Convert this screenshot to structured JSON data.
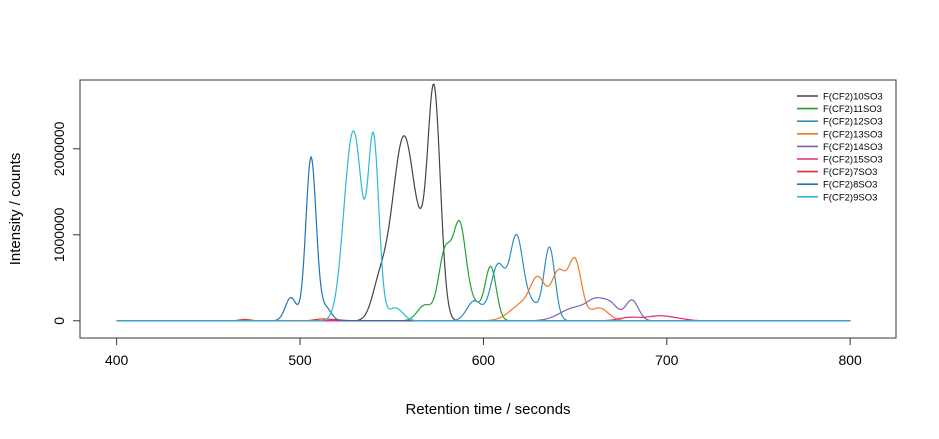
{
  "chart_data": {
    "type": "line",
    "title": "",
    "xlabel": "Retention time / seconds",
    "ylabel": "Intensity / counts",
    "xlim": [
      380,
      825
    ],
    "ylim": [
      -200000,
      2800000
    ],
    "xticks": [
      400,
      500,
      600,
      700,
      800
    ],
    "xtick_labels": [
      "400",
      "500",
      "600",
      "700",
      "800"
    ],
    "yticks": [
      0,
      1000000,
      2000000
    ],
    "ytick_labels": [
      "0",
      "1000000",
      "2000000"
    ],
    "grid": false,
    "legend_position": "top-right",
    "x_range": [
      400,
      800
    ],
    "series": [
      {
        "name": "F(CF2)10SO3",
        "color": "#444444",
        "peaks": [
          [
            543,
            350000,
            4
          ],
          [
            555,
            1650000,
            6
          ],
          [
            560,
            700000,
            5
          ],
          [
            573,
            2690000,
            3.5
          ],
          [
            566,
            300000,
            3
          ]
        ]
      },
      {
        "name": "F(CF2)11SO3",
        "color": "#27a12f",
        "peaks": [
          [
            568,
            180000,
            4
          ],
          [
            579,
            780000,
            3.5
          ],
          [
            587,
            1080000,
            3.5
          ],
          [
            595,
            180000,
            4
          ],
          [
            604,
            620000,
            3
          ]
        ]
      },
      {
        "name": "F(CF2)12SO3",
        "color": "#2f8fc3",
        "peaks": [
          [
            595,
            230000,
            4
          ],
          [
            608,
            650000,
            4
          ],
          [
            618,
            950000,
            3.5
          ],
          [
            626,
            200000,
            4
          ],
          [
            636,
            850000,
            3
          ]
        ]
      },
      {
        "name": "F(CF2)13SO3",
        "color": "#f07824",
        "peaks": [
          [
            622,
            200000,
            7
          ],
          [
            630,
            400000,
            4
          ],
          [
            641,
            560000,
            4
          ],
          [
            650,
            680000,
            3.5
          ],
          [
            663,
            150000,
            5
          ]
        ]
      },
      {
        "name": "F(CF2)14SO3",
        "color": "#7c64b4",
        "peaks": [
          [
            650,
            150000,
            8
          ],
          [
            662,
            200000,
            5
          ],
          [
            670,
            150000,
            4
          ],
          [
            681,
            240000,
            3.5
          ]
        ]
      },
      {
        "name": "F(CF2)15SO3",
        "color": "#e02881",
        "peaks": [
          [
            680,
            40000,
            6
          ],
          [
            695,
            50000,
            6
          ],
          [
            705,
            25000,
            6
          ]
        ]
      },
      {
        "name": "F(CF2)7SO3",
        "color": "#e8312c",
        "peaks": [
          [
            470,
            15000,
            3
          ],
          [
            512,
            20000,
            4
          ],
          [
            520,
            10000,
            4
          ]
        ]
      },
      {
        "name": "F(CF2)8SO3",
        "color": "#1f74b8",
        "peaks": [
          [
            495,
            270000,
            3
          ],
          [
            506,
            1900000,
            2.8
          ],
          [
            514,
            150000,
            3
          ]
        ]
      },
      {
        "name": "F(CF2)9SO3",
        "color": "#2fb8da",
        "peaks": [
          [
            528,
            1950000,
            4.5
          ],
          [
            532,
            500000,
            3
          ],
          [
            540,
            2120000,
            3
          ],
          [
            552,
            150000,
            4
          ]
        ]
      }
    ]
  }
}
